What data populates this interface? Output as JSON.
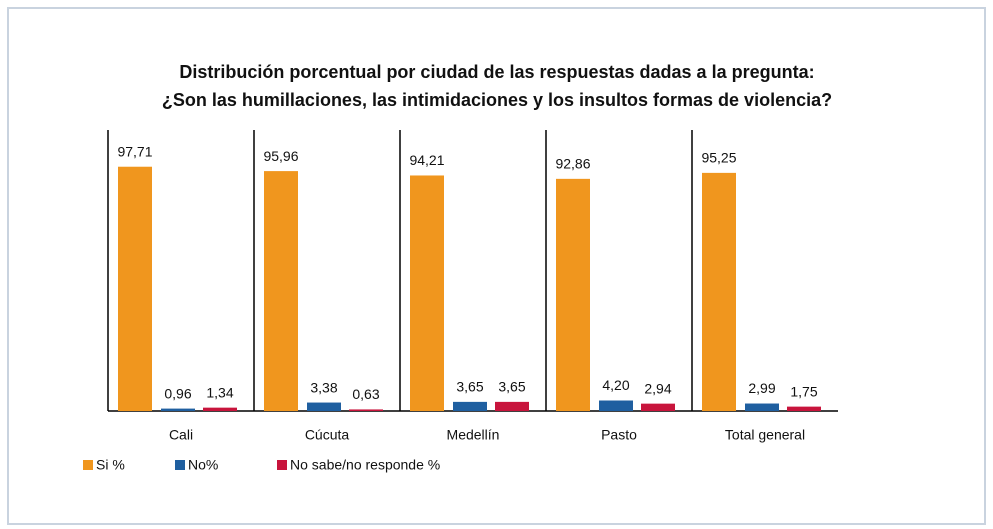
{
  "chart_data": {
    "type": "bar",
    "title": [
      "Distribución porcentual por ciudad de las respuestas dadas a la pregunta:",
      "¿Son las humillaciones, las intimidaciones y los insultos  formas de violencia?"
    ],
    "categories": [
      "Cali",
      "Cúcuta",
      "Medellín",
      "Pasto",
      "Total general"
    ],
    "series": [
      {
        "name": "Si %",
        "color": "#f0961e",
        "values": [
          97.71,
          95.96,
          94.21,
          92.86,
          95.25
        ],
        "value_labels": [
          "97,71",
          "95,96",
          "94,21",
          "92,86",
          "95,25"
        ]
      },
      {
        "name": "No%",
        "color": "#1f5fa0",
        "values": [
          0.96,
          3.38,
          3.65,
          4.2,
          2.99
        ],
        "value_labels": [
          "0,96",
          "3,38",
          "3,65",
          "4,20",
          "2,99"
        ]
      },
      {
        "name": "No sabe/no responde %",
        "color": "#c8143c",
        "values": [
          1.34,
          0.63,
          3.65,
          2.94,
          1.75
        ],
        "value_labels": [
          "1,34",
          "0,63",
          "3,65",
          "2,94",
          "1,75"
        ]
      }
    ],
    "ylim": [
      0,
      100
    ],
    "legend": "bottom-left"
  }
}
